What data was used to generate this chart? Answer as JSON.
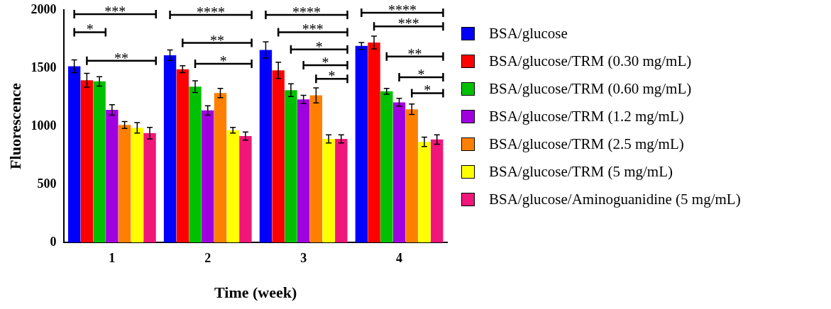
{
  "chart_data": {
    "type": "bar",
    "xlabel": "Time (week)",
    "ylabel": "Fluorescence",
    "categories": [
      "1",
      "2",
      "3",
      "4"
    ],
    "series": [
      {
        "name": "BSA/glucose",
        "color": "#0000ff",
        "values": [
          1515,
          1610,
          1655,
          1690
        ],
        "errors": [
          55,
          45,
          70,
          30
        ]
      },
      {
        "name": "BSA/glucose/TRM (0.30 mg/mL)",
        "color": "#ff0000",
        "values": [
          1395,
          1490,
          1480,
          1720
        ],
        "errors": [
          60,
          30,
          70,
          55
        ]
      },
      {
        "name": "BSA/glucose/TRM (0.60 mg/mL)",
        "color": "#00c000",
        "values": [
          1385,
          1340,
          1310,
          1300
        ],
        "errors": [
          40,
          50,
          55,
          25
        ]
      },
      {
        "name": "BSA/glucose/TRM (1.2 mg/mL)",
        "color": "#a000e0",
        "values": [
          1140,
          1135,
          1230,
          1205
        ],
        "errors": [
          45,
          40,
          35,
          35
        ]
      },
      {
        "name": "BSA/glucose/TRM (2.5 mg/mL)",
        "color": "#ff8000",
        "values": [
          1010,
          1285,
          1265,
          1145
        ],
        "errors": [
          30,
          40,
          65,
          45
        ]
      },
      {
        "name": "BSA/glucose/TRM (5 mg/mL)",
        "color": "#ffff00",
        "values": [
          985,
          965,
          890,
          865
        ],
        "errors": [
          45,
          25,
          35,
          40
        ]
      },
      {
        "name": "BSA/glucose/Aminoguanidine (5 mg/mL)",
        "color": "#f0167a",
        "values": [
          940,
          915,
          890,
          885
        ],
        "errors": [
          50,
          35,
          35,
          40
        ]
      }
    ],
    "ylim": [
      0,
      2000
    ],
    "yticks": [
      0,
      500,
      1000,
      1500,
      2000
    ],
    "grid": false,
    "legend": "right",
    "annotations": [
      "***",
      "*",
      "**",
      "****",
      "**",
      "*",
      "****",
      "***",
      "*",
      "*",
      "*",
      "****",
      "***",
      "**",
      "*",
      "*"
    ]
  }
}
